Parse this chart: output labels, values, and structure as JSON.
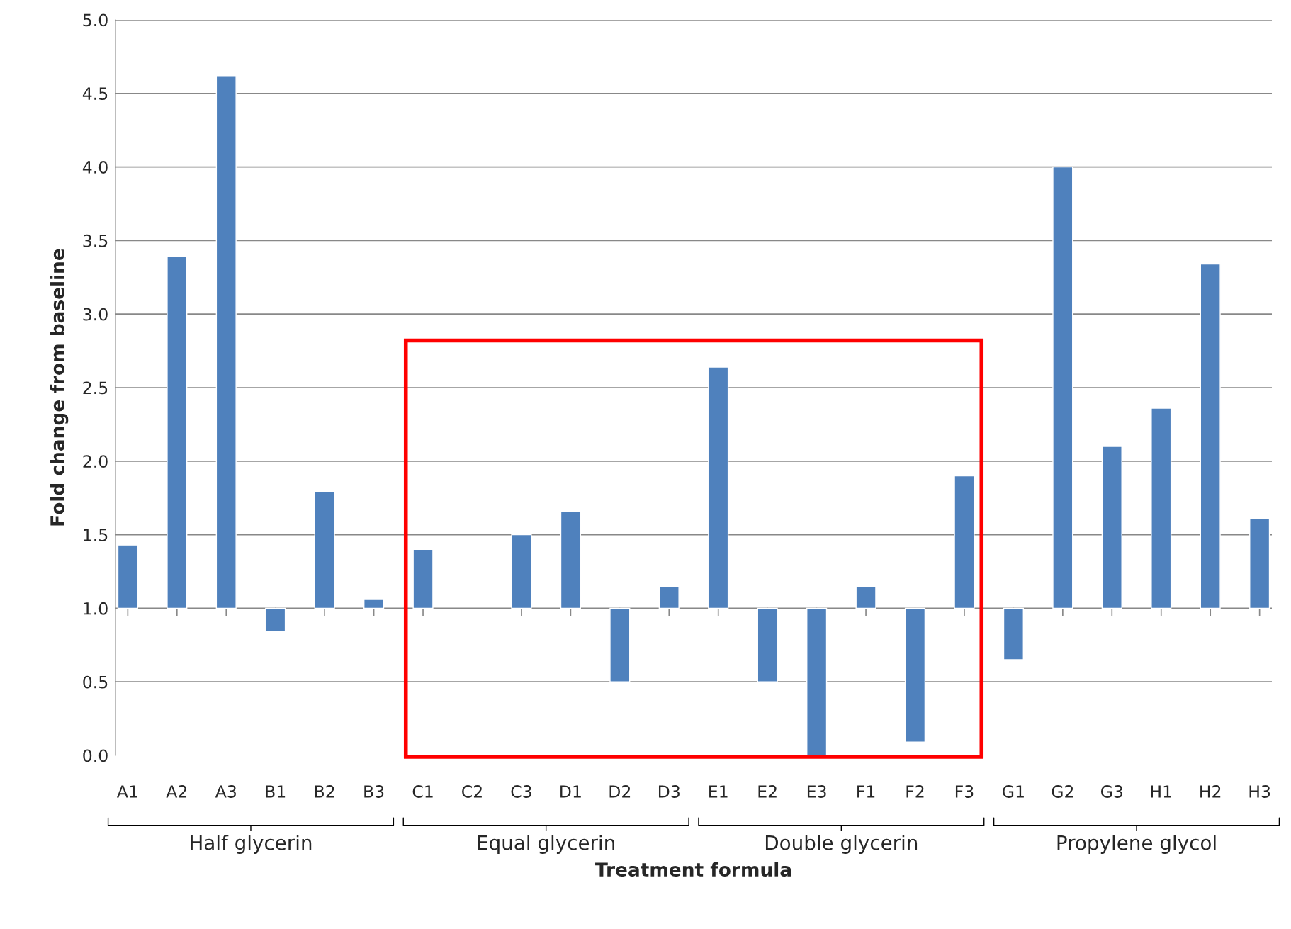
{
  "chart_data": {
    "type": "bar",
    "xlabel": "Treatment formula",
    "ylabel": "Fold change from baseline",
    "categories": [
      "A1",
      "A2",
      "A3",
      "B1",
      "B2",
      "B3",
      "C1",
      "C2",
      "C3",
      "D1",
      "D2",
      "D3",
      "E1",
      "E2",
      "E3",
      "F1",
      "F2",
      "F3",
      "G1",
      "G2",
      "G3",
      "H1",
      "H2",
      "H3"
    ],
    "base": [
      1,
      1,
      1,
      1,
      1,
      1,
      1,
      null,
      1,
      1,
      1,
      1,
      1,
      1,
      1,
      1,
      1,
      1,
      1,
      1,
      1,
      1,
      1,
      1
    ],
    "values": [
      0.43,
      2.39,
      3.62,
      -0.16,
      0.79,
      0.06,
      0.4,
      null,
      0.5,
      0.66,
      -0.5,
      0.15,
      1.64,
      -0.5,
      -1.0,
      0.15,
      -0.91,
      0.9,
      -0.35,
      3.0,
      1.1,
      1.36,
      2.34,
      0.61
    ],
    "color": "#4f81bd",
    "ylim": [
      0,
      5
    ],
    "yticks": [
      {
        "value": 0,
        "label": "0.0"
      },
      {
        "value": 0.5,
        "label": "0.5"
      },
      {
        "value": 1,
        "label": "1.0"
      },
      {
        "value": 1.5,
        "label": "1.5"
      },
      {
        "value": 2,
        "label": "2.0"
      },
      {
        "value": 2.5,
        "label": "2.5"
      },
      {
        "value": 3,
        "label": "3.0"
      },
      {
        "value": 3.5,
        "label": "3.5"
      },
      {
        "value": 4,
        "label": "4.0"
      },
      {
        "value": 4.5,
        "label": "4.5"
      },
      {
        "value": 5,
        "label": "5.0"
      }
    ],
    "grid": "y",
    "annotations": [
      "Half glycerin",
      "Equal glycerin",
      "Double glycerin",
      "Propylene glycol"
    ]
  }
}
